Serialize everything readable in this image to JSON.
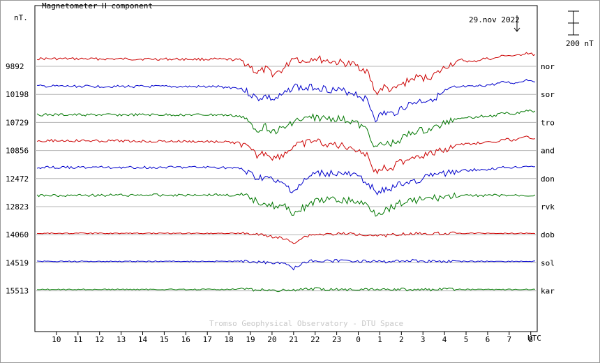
{
  "chart_data": {
    "type": "line",
    "title": "Magnetometer H component",
    "date": "29.nov 2022",
    "y_unit": "nT.",
    "scale_bar": "200 nT",
    "credit": "Tromso Geophysical Observatory - DTU Space",
    "x_axis_label": "UTC",
    "x_ticks": [
      "10",
      "11",
      "12",
      "13",
      "14",
      "15",
      "16",
      "17",
      "18",
      "19",
      "20",
      "21",
      "22",
      "23",
      "0",
      "1",
      "2",
      "3",
      "4",
      "5",
      "6",
      "7",
      "8"
    ],
    "x_range_hours_utc": [
      9.0,
      32.3
    ],
    "x_start_hour_utc": 9.0,
    "grid": "horizontal baseline per station",
    "colors": {
      "nor": "#cc0000",
      "sor": "#0000cc",
      "tro": "#007700",
      "and": "#cc0000",
      "don": "#0000cc",
      "rvk": "#007700",
      "dob": "#cc0000",
      "sol": "#0000cc",
      "kar": "#007700"
    },
    "series": [
      {
        "name": "nor",
        "baseline": "9892",
        "x": [
          9.1,
          17.5,
          18.5,
          18.9,
          19.3,
          19.7,
          20.1,
          20.6,
          21.0,
          21.5,
          21.9,
          22.3,
          23.0,
          23.8,
          24.4,
          24.8,
          25.2,
          25.6,
          26.0,
          26.6,
          27.2,
          27.7,
          28.2,
          28.8,
          29.3,
          29.8,
          30.3,
          30.8,
          31.3,
          31.8,
          32.2
        ],
        "y": [
          -30,
          -35,
          -40,
          -80,
          -150,
          -120,
          -160,
          -110,
          -10,
          -60,
          -20,
          -40,
          -60,
          -80,
          -130,
          -320,
          -270,
          -300,
          -250,
          -190,
          -190,
          -150,
          -80,
          -40,
          -60,
          -30,
          -30,
          0,
          -10,
          20,
          0
        ]
      },
      {
        "name": "sor",
        "baseline": "10198",
        "x": [
          9.1,
          17.5,
          18.5,
          18.9,
          19.3,
          19.7,
          20.1,
          20.6,
          21.0,
          21.5,
          21.9,
          22.3,
          23.0,
          23.8,
          24.4,
          24.8,
          25.2,
          25.6,
          26.0,
          26.6,
          27.2,
          27.7,
          28.2,
          28.8,
          29.3,
          29.8,
          30.3,
          30.8,
          31.3,
          31.8,
          32.2
        ],
        "y": [
          -25,
          -30,
          -40,
          -80,
          -130,
          -110,
          -140,
          -90,
          -20,
          -50,
          -30,
          -40,
          -60,
          -80,
          -140,
          -300,
          -250,
          -260,
          -210,
          -160,
          -140,
          -110,
          -60,
          -30,
          -30,
          -20,
          -10,
          10,
          0,
          30,
          20
        ]
      },
      {
        "name": "tro",
        "baseline": "10729",
        "x": [
          9.1,
          17.5,
          18.5,
          18.9,
          19.3,
          19.7,
          20.1,
          20.6,
          21.0,
          21.5,
          21.9,
          22.3,
          23.0,
          23.8,
          24.4,
          24.8,
          25.2,
          25.6,
          26.0,
          26.6,
          27.2,
          27.7,
          28.2,
          28.8,
          29.3,
          29.8,
          30.3,
          30.8,
          31.3,
          31.8,
          32.2
        ],
        "y": [
          -30,
          -30,
          -40,
          -90,
          -150,
          -130,
          -170,
          -140,
          -80,
          -70,
          -50,
          -60,
          -60,
          -90,
          -160,
          -300,
          -280,
          -270,
          -230,
          -170,
          -160,
          -130,
          -80,
          -50,
          -50,
          -40,
          -40,
          -10,
          -20,
          10,
          0
        ]
      },
      {
        "name": "and",
        "baseline": "10856",
        "x": [
          9.1,
          17.5,
          18.5,
          18.9,
          19.3,
          19.7,
          20.1,
          20.6,
          21.0,
          21.5,
          21.9,
          22.3,
          23.0,
          23.8,
          24.4,
          24.8,
          25.2,
          25.6,
          26.0,
          26.6,
          27.2,
          27.7,
          28.2,
          28.8,
          29.3,
          29.8,
          30.3,
          30.8,
          31.3,
          31.8,
          32.2
        ],
        "y": [
          -10,
          -20,
          -30,
          -80,
          -140,
          -110,
          -160,
          -120,
          -60,
          -40,
          -10,
          -30,
          -50,
          -70,
          -130,
          -280,
          -240,
          -230,
          -190,
          -140,
          -130,
          -110,
          -70,
          -40,
          -40,
          -20,
          -30,
          0,
          -10,
          20,
          10
        ]
      },
      {
        "name": "don",
        "baseline": "12472",
        "x": [
          9.1,
          17.5,
          18.5,
          18.9,
          19.3,
          19.7,
          20.1,
          20.6,
          21.0,
          21.5,
          21.9,
          22.3,
          23.0,
          23.8,
          24.4,
          24.8,
          25.2,
          25.6,
          26.0,
          26.6,
          27.2,
          27.7,
          28.2,
          28.8,
          29.3,
          29.8,
          30.3,
          30.8,
          31.3,
          31.8,
          32.2
        ],
        "y": [
          0,
          0,
          -10,
          -50,
          -90,
          -80,
          -120,
          -150,
          -200,
          -120,
          -60,
          -50,
          -50,
          -70,
          -120,
          -200,
          -200,
          -170,
          -140,
          -110,
          -80,
          -60,
          -40,
          -30,
          -20,
          -20,
          -10,
          0,
          0,
          10,
          10
        ]
      },
      {
        "name": "rvk",
        "baseline": "12823",
        "x": [
          9.1,
          17.5,
          18.5,
          18.9,
          19.3,
          19.7,
          20.1,
          20.6,
          21.0,
          21.5,
          21.9,
          22.3,
          23.0,
          23.8,
          24.4,
          24.8,
          25.2,
          25.6,
          26.0,
          26.6,
          27.2,
          27.7,
          28.2,
          28.8,
          29.3,
          29.8,
          30.3,
          30.8,
          31.3,
          31.8,
          32.2
        ],
        "y": [
          0,
          5,
          0,
          -20,
          -50,
          -60,
          -90,
          -100,
          -150,
          -100,
          -60,
          -40,
          -40,
          -50,
          -80,
          -150,
          -130,
          -90,
          -60,
          -40,
          -30,
          -20,
          -10,
          -5,
          0,
          0,
          0,
          0,
          0,
          0,
          0
        ]
      },
      {
        "name": "dob",
        "baseline": "14060",
        "x": [
          9.1,
          17.5,
          18.5,
          18.9,
          19.3,
          19.7,
          20.1,
          20.6,
          21.0,
          21.5,
          21.9,
          22.3,
          23.0,
          23.8,
          24.4,
          24.8,
          25.2,
          25.6,
          26.0,
          26.6,
          27.2,
          27.7,
          28.2,
          28.8,
          29.3,
          29.8,
          30.3,
          30.8,
          31.3,
          31.8,
          32.2
        ],
        "y": [
          0,
          0,
          0,
          -5,
          -10,
          -20,
          -30,
          -50,
          -80,
          -30,
          -10,
          -10,
          -5,
          -5,
          -10,
          -15,
          -20,
          -10,
          -5,
          -3,
          -2,
          0,
          0,
          0,
          0,
          0,
          0,
          0,
          0,
          0,
          0
        ]
      },
      {
        "name": "sol",
        "baseline": "14519",
        "x": [
          9.1,
          17.5,
          18.5,
          18.9,
          19.3,
          19.7,
          20.1,
          20.6,
          21.0,
          21.5,
          21.9,
          22.3,
          23.0,
          23.8,
          24.4,
          24.8,
          25.2,
          25.6,
          26.0,
          26.6,
          27.2,
          27.7,
          28.2,
          28.8,
          29.3,
          29.8,
          30.3,
          30.8,
          31.3,
          31.8,
          32.2
        ],
        "y": [
          0,
          0,
          0,
          -3,
          -5,
          -10,
          -10,
          -15,
          -60,
          -5,
          5,
          0,
          5,
          5,
          0,
          -3,
          -5,
          0,
          5,
          5,
          0,
          0,
          0,
          0,
          0,
          0,
          0,
          0,
          0,
          0,
          0
        ]
      },
      {
        "name": "kar",
        "baseline": "15513",
        "x": [
          9.1,
          17.5,
          18.5,
          18.9,
          19.3,
          19.7,
          20.1,
          20.6,
          21.0,
          21.5,
          21.9,
          22.3,
          23.0,
          23.8,
          24.4,
          24.8,
          25.2,
          25.6,
          26.0,
          26.6,
          27.2,
          27.7,
          28.2,
          28.8,
          29.3,
          29.8,
          30.3,
          30.8,
          31.3,
          31.8,
          32.2
        ],
        "y": [
          0,
          0,
          5,
          0,
          -5,
          -5,
          -10,
          -5,
          -10,
          0,
          5,
          0,
          0,
          0,
          5,
          5,
          0,
          0,
          0,
          0,
          0,
          0,
          0,
          0,
          0,
          0,
          0,
          0,
          0,
          0,
          0
        ]
      }
    ]
  }
}
